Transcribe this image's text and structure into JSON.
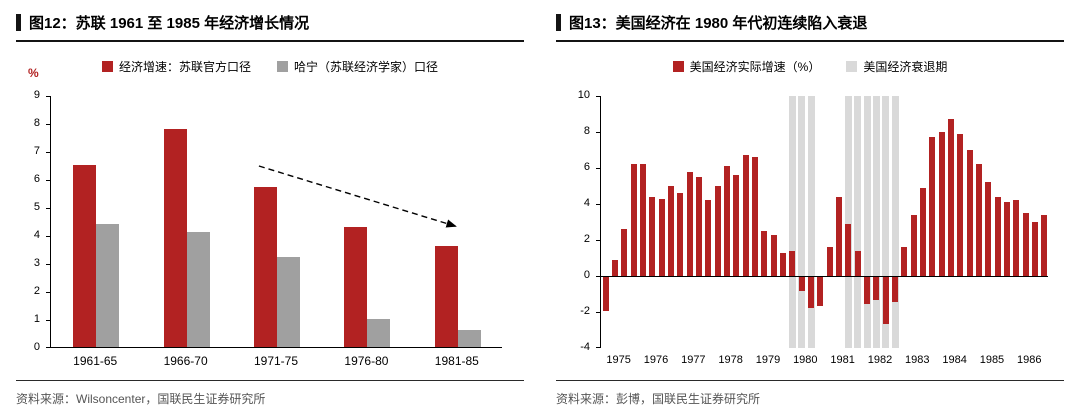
{
  "styles": {
    "bar_red": "#b22222",
    "bar_gray": "#a0a0a0",
    "recession_gray": "#d9d9d9",
    "percent_label_color": "#b22222"
  },
  "chart_data": [
    {
      "id": "fig12-soviet-growth",
      "type": "bar",
      "title": "图12：苏联 1961 至 1985 年经济增长情况",
      "ylabel": "%",
      "ylim": [
        0,
        9
      ],
      "yticks": [
        9,
        8,
        7,
        6,
        5,
        4,
        3,
        2,
        1,
        0
      ],
      "grid": false,
      "legend_position": "top",
      "categories": [
        "1961-65",
        "1966-70",
        "1971-75",
        "1976-80",
        "1981-85"
      ],
      "series": [
        {
          "name": "经济增速：苏联官方口径",
          "color": "#b22222",
          "values": [
            6.5,
            7.8,
            5.7,
            4.3,
            3.6
          ]
        },
        {
          "name": "哈宁（苏联经济学家）口径",
          "color": "#a0a0a0",
          "values": [
            4.4,
            4.1,
            3.2,
            1.0,
            0.6
          ]
        }
      ],
      "annotation": {
        "type": "dashed-declining-arrow",
        "from": {
          "fx": 0.46,
          "value": 6.5
        },
        "to": {
          "fx": 0.895,
          "value": 4.35
        }
      },
      "source": "资料来源：Wilsoncenter，国联民生证券研究所"
    },
    {
      "id": "fig13-us-recessions",
      "type": "bar",
      "title": "图13：美国经济在 1980 年代初连续陷入衰退",
      "ylim": [
        -4,
        10
      ],
      "yticks": [
        10,
        8,
        6,
        4,
        2,
        0,
        -2,
        -4
      ],
      "grid": false,
      "legend_position": "top",
      "x_year_labels": [
        "1975",
        "1976",
        "1977",
        "1978",
        "1979",
        "1980",
        "1981",
        "1982",
        "1983",
        "1984",
        "1985",
        "1986"
      ],
      "quarters_per_year": 4,
      "series": [
        {
          "name": "美国经济实际增速（%）",
          "color": "#b22222",
          "values": [
            -1.9,
            0.9,
            2.6,
            6.2,
            6.2,
            4.4,
            4.3,
            5.0,
            4.6,
            5.8,
            5.5,
            4.2,
            5.0,
            6.1,
            5.6,
            6.7,
            6.6,
            2.5,
            2.3,
            1.3,
            1.4,
            -0.8,
            -1.7,
            -1.6,
            1.6,
            4.4,
            2.9,
            1.4,
            -1.5,
            -1.3,
            -2.6,
            -1.4,
            1.6,
            3.4,
            4.9,
            7.7,
            8.0,
            8.7,
            7.9,
            7.0,
            6.2,
            5.2,
            4.4,
            4.1,
            4.2,
            3.5,
            3.0,
            3.4
          ]
        }
      ],
      "recession": {
        "legend": "美国经济衰退期",
        "color": "#d9d9d9",
        "bands": [
          {
            "start_index": 20,
            "end_index": 22
          },
          {
            "start_index": 26,
            "end_index": 31
          }
        ]
      },
      "source": "资料来源：彭博，国联民生证券研究所"
    }
  ]
}
